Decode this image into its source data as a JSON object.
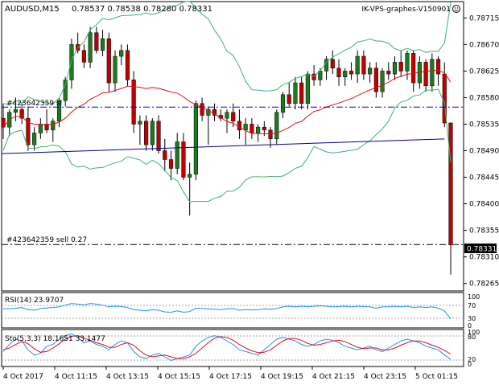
{
  "header": {
    "symbol": "AUDUSD,M15",
    "ohlc": "0.78537 0.78538 0.78280 0.78331",
    "expert": "IK-VPS-graphes-V150901",
    "expert_icon": "smiley-icon"
  },
  "colors": {
    "bull": "#1e7a1e",
    "bear": "#c00000",
    "bands": "#3cb371",
    "ma": "#e01010",
    "trend": "#00008b",
    "order_line": "#0000cc",
    "rsi": "#1e90ff",
    "stoch_main": "#1e90ff",
    "stoch_signal": "#e01010"
  },
  "chart_data": [
    {
      "type": "candlestick",
      "title": "AUDUSD,M15",
      "y_ticks": [
        "0.78715",
        "0.78670",
        "0.78625",
        "0.78580",
        "0.78535",
        "0.78490",
        "0.78445",
        "0.78400",
        "0.78355",
        "0.78310",
        "0.78265"
      ],
      "ylim": [
        0.78255,
        0.7874
      ],
      "x_tick_labels": [
        "4 Oct 2017",
        "4 Oct 11:15",
        "4 Oct 13:15",
        "4 Oct 15:15",
        "4 Oct 17:15",
        "4 Oct 19:15",
        "4 Oct 21:15",
        "4 Oct 23:15",
        "5 Oct 01:15"
      ],
      "current_price": "0.78331",
      "order_lines": [
        {
          "label": "#423642359 sl",
          "price": 0.78564
        },
        {
          "label": "#423642359 sell 0.27",
          "price": 0.78331
        }
      ],
      "trend_line": {
        "start": 0.78485,
        "end": 0.7851
      },
      "candles": [
        [
          0.78545,
          0.7857,
          0.7851,
          0.7853
        ],
        [
          0.7853,
          0.7856,
          0.78515,
          0.78555
        ],
        [
          0.78555,
          0.7858,
          0.7854,
          0.7856
        ],
        [
          0.7856,
          0.7857,
          0.78535,
          0.78545
        ],
        [
          0.78545,
          0.78565,
          0.7849,
          0.785
        ],
        [
          0.785,
          0.7853,
          0.7849,
          0.7852
        ],
        [
          0.7852,
          0.78545,
          0.7851,
          0.78535
        ],
        [
          0.78535,
          0.7856,
          0.7852,
          0.78525
        ],
        [
          0.78525,
          0.78545,
          0.78505,
          0.7854
        ],
        [
          0.7854,
          0.7858,
          0.7853,
          0.78575
        ],
        [
          0.78575,
          0.78615,
          0.78565,
          0.7861
        ],
        [
          0.7861,
          0.7868,
          0.78595,
          0.7867
        ],
        [
          0.7867,
          0.7869,
          0.78655,
          0.7866
        ],
        [
          0.7866,
          0.7867,
          0.7863,
          0.7864
        ],
        [
          0.7864,
          0.787,
          0.7863,
          0.7869
        ],
        [
          0.7869,
          0.787,
          0.78655,
          0.7866
        ],
        [
          0.7866,
          0.78695,
          0.7865,
          0.7868
        ],
        [
          0.7868,
          0.7869,
          0.7859,
          0.78605
        ],
        [
          0.78605,
          0.7866,
          0.7859,
          0.7865
        ],
        [
          0.7865,
          0.7867,
          0.78635,
          0.7866
        ],
        [
          0.7866,
          0.7867,
          0.786,
          0.7861
        ],
        [
          0.7861,
          0.78625,
          0.7852,
          0.78535
        ],
        [
          0.78535,
          0.7855,
          0.785,
          0.7854
        ],
        [
          0.7854,
          0.7855,
          0.7849,
          0.785
        ],
        [
          0.785,
          0.78545,
          0.7849,
          0.7854
        ],
        [
          0.7854,
          0.7855,
          0.78485,
          0.7849
        ],
        [
          0.7849,
          0.7851,
          0.78455,
          0.78475
        ],
        [
          0.78475,
          0.7849,
          0.7844,
          0.7846
        ],
        [
          0.7846,
          0.7852,
          0.7845,
          0.78505
        ],
        [
          0.78505,
          0.7852,
          0.7844,
          0.78445
        ],
        [
          0.78445,
          0.7847,
          0.7838,
          0.7845
        ],
        [
          0.7845,
          0.78575,
          0.7844,
          0.7857
        ],
        [
          0.7857,
          0.7858,
          0.7854,
          0.7855
        ],
        [
          0.7855,
          0.78565,
          0.785,
          0.7856
        ],
        [
          0.7856,
          0.7857,
          0.7854,
          0.7855
        ],
        [
          0.7855,
          0.7856,
          0.7854,
          0.78545
        ],
        [
          0.78545,
          0.7856,
          0.7852,
          0.78555
        ],
        [
          0.78555,
          0.7857,
          0.7853,
          0.7854
        ],
        [
          0.7854,
          0.7856,
          0.7851,
          0.78525
        ],
        [
          0.78525,
          0.78545,
          0.785,
          0.78535
        ],
        [
          0.78535,
          0.78545,
          0.7851,
          0.7852
        ],
        [
          0.7852,
          0.78535,
          0.78505,
          0.7853
        ],
        [
          0.7853,
          0.7854,
          0.78515,
          0.78525
        ],
        [
          0.78525,
          0.7853,
          0.78495,
          0.7851
        ],
        [
          0.7851,
          0.7856,
          0.785,
          0.78555
        ],
        [
          0.78555,
          0.7859,
          0.78545,
          0.78585
        ],
        [
          0.78585,
          0.78605,
          0.78565,
          0.7857
        ],
        [
          0.7857,
          0.78615,
          0.7856,
          0.78605
        ],
        [
          0.78605,
          0.78615,
          0.7856,
          0.7857
        ],
        [
          0.7857,
          0.78625,
          0.7856,
          0.7862
        ],
        [
          0.7862,
          0.78635,
          0.786,
          0.7861
        ],
        [
          0.7861,
          0.7863,
          0.786,
          0.78625
        ],
        [
          0.78625,
          0.7865,
          0.7861,
          0.78645
        ],
        [
          0.78645,
          0.7866,
          0.7862,
          0.7863
        ],
        [
          0.7863,
          0.78645,
          0.786,
          0.78615
        ],
        [
          0.78615,
          0.7863,
          0.786,
          0.78625
        ],
        [
          0.78625,
          0.7864,
          0.7861,
          0.7862
        ],
        [
          0.7862,
          0.7866,
          0.78605,
          0.7865
        ],
        [
          0.7865,
          0.7866,
          0.7861,
          0.7862
        ],
        [
          0.7862,
          0.7864,
          0.78605,
          0.7863
        ],
        [
          0.7863,
          0.7864,
          0.7858,
          0.7859
        ],
        [
          0.7859,
          0.7863,
          0.7858,
          0.78625
        ],
        [
          0.78625,
          0.7864,
          0.7861,
          0.7862
        ],
        [
          0.7862,
          0.7865,
          0.7861,
          0.7864
        ],
        [
          0.7864,
          0.7866,
          0.78615,
          0.78625
        ],
        [
          0.78625,
          0.7866,
          0.7861,
          0.78655
        ],
        [
          0.78655,
          0.7866,
          0.7859,
          0.78605
        ],
        [
          0.78605,
          0.7865,
          0.78595,
          0.7864
        ],
        [
          0.7864,
          0.78645,
          0.7859,
          0.786
        ],
        [
          0.786,
          0.78655,
          0.7859,
          0.78645
        ],
        [
          0.78645,
          0.7865,
          0.786,
          0.7862
        ],
        [
          0.7862,
          0.7864,
          0.7853,
          0.78537
        ],
        [
          0.78537,
          0.78538,
          0.7828,
          0.78331
        ]
      ]
    },
    {
      "type": "line",
      "title": "RSI(14) 23.9707",
      "levels": [
        "100",
        "70",
        "30",
        "0"
      ],
      "ylim": [
        0,
        100
      ],
      "series": [
        {
          "values": [
            55,
            54,
            56,
            58,
            52,
            50,
            55,
            57,
            58,
            60,
            65,
            70,
            68,
            66,
            70,
            68,
            65,
            60,
            62,
            61,
            58,
            52,
            50,
            48,
            52,
            50,
            45,
            44,
            48,
            44,
            46,
            56,
            55,
            54,
            53,
            52,
            54,
            55,
            50,
            52,
            51,
            52,
            54,
            53,
            55,
            60,
            62,
            60,
            62,
            60,
            62,
            63,
            62,
            60,
            61,
            62,
            60,
            62,
            61,
            60,
            56,
            60,
            60,
            62,
            60,
            62,
            58,
            60,
            58,
            60,
            56,
            48,
            24
          ]
        }
      ]
    },
    {
      "type": "line",
      "title": "Sto(5,3,3) 18.1651 33.1477",
      "levels": [
        "100",
        "80",
        "20",
        "0"
      ],
      "ylim": [
        0,
        100
      ],
      "series": [
        {
          "values": [
            40,
            60,
            75,
            70,
            45,
            30,
            35,
            55,
            60,
            75,
            85,
            90,
            80,
            65,
            70,
            60,
            55,
            45,
            60,
            70,
            65,
            40,
            25,
            20,
            30,
            35,
            25,
            15,
            20,
            25,
            30,
            55,
            70,
            80,
            85,
            80,
            70,
            60,
            45,
            40,
            35,
            30,
            45,
            60,
            75,
            80,
            75,
            70,
            60,
            55,
            60,
            70,
            75,
            72,
            65,
            55,
            50,
            45,
            50,
            55,
            45,
            40,
            50,
            60,
            70,
            75,
            70,
            65,
            55,
            50,
            45,
            30,
            18
          ]
        },
        {
          "values": [
            45,
            50,
            60,
            68,
            62,
            48,
            38,
            40,
            50,
            62,
            75,
            83,
            85,
            78,
            72,
            65,
            60,
            52,
            52,
            60,
            65,
            58,
            42,
            30,
            25,
            28,
            30,
            25,
            20,
            20,
            25,
            35,
            50,
            65,
            78,
            82,
            80,
            72,
            60,
            50,
            42,
            37,
            38,
            45,
            58,
            70,
            77,
            77,
            72,
            63,
            58,
            60,
            65,
            70,
            72,
            68,
            60,
            52,
            48,
            50,
            50,
            45,
            45,
            50,
            58,
            65,
            70,
            70,
            65,
            58,
            52,
            43,
            33
          ]
        }
      ]
    }
  ]
}
